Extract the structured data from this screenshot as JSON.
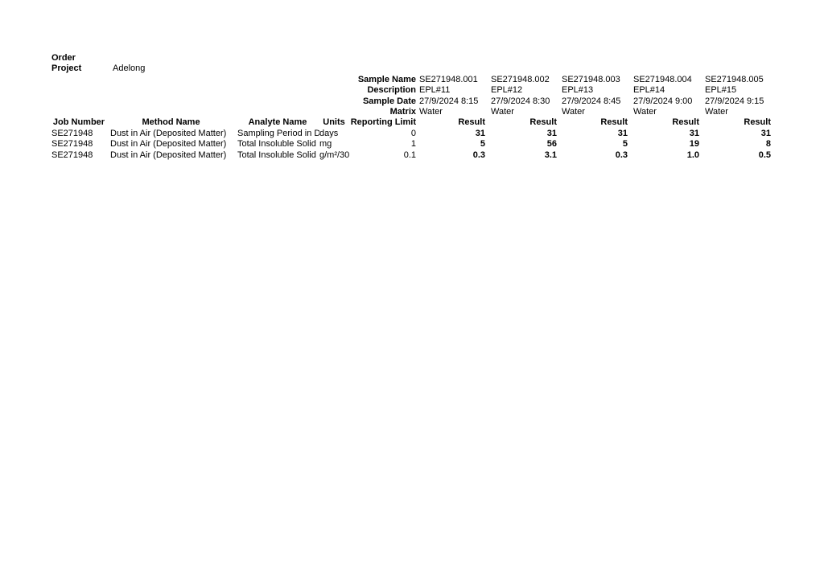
{
  "meta": {
    "order_label": "Order",
    "project_label": "Project",
    "project_value": "Adelong"
  },
  "sample_header": {
    "name_label": "Sample Name",
    "description_label": "Description",
    "date_label": "Sample Date",
    "matrix_label": "Matrix"
  },
  "samples": [
    {
      "name": "SE271948.001",
      "description": "EPL#11",
      "date": "27/9/2024 8:15",
      "matrix": "Water"
    },
    {
      "name": "SE271948.002",
      "description": "EPL#12",
      "date": "27/9/2024 8:30",
      "matrix": "Water"
    },
    {
      "name": "SE271948.003",
      "description": "EPL#13",
      "date": "27/9/2024 8:45",
      "matrix": "Water"
    },
    {
      "name": "SE271948.004",
      "description": "EPL#14",
      "date": "27/9/2024 9:00",
      "matrix": "Water"
    },
    {
      "name": "SE271948.005",
      "description": "EPL#15",
      "date": "27/9/2024 9:15",
      "matrix": "Water"
    }
  ],
  "table": {
    "headers": {
      "job": "Job Number",
      "method": "Method Name",
      "analyte": "Analyte Name",
      "units": "Units",
      "limit": "Reporting Limit",
      "result": "Result"
    },
    "rows": [
      {
        "job": "SE271948",
        "method": "Dust in Air (Deposited Matter)",
        "analyte": "Sampling Period in Days",
        "units": "days",
        "limit": "0",
        "results": [
          "31",
          "31",
          "31",
          "31",
          "31"
        ]
      },
      {
        "job": "SE271948",
        "method": "Dust in Air (Deposited Matter)",
        "analyte": "Total Insoluble Solid",
        "units": "mg",
        "limit": "1",
        "results": [
          "5",
          "56",
          "5",
          "19",
          "8"
        ]
      },
      {
        "job": "SE271948",
        "method": "Dust in Air (Deposited Matter)",
        "analyte": "Total Insoluble Solid",
        "units": "g/m²/30",
        "limit": "0.1",
        "results": [
          "0.3",
          "3.1",
          "0.3",
          "1.0",
          "0.5"
        ]
      }
    ]
  }
}
